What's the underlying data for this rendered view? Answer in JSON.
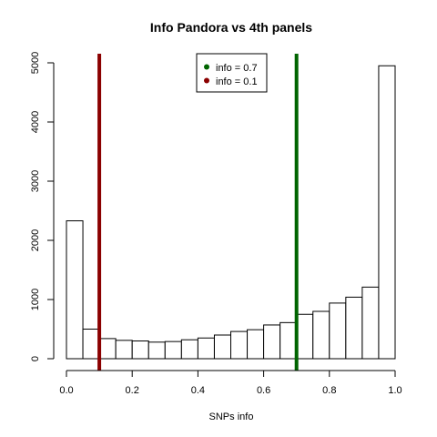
{
  "chart_data": {
    "type": "bar",
    "title": "Info Pandora vs 4th panels",
    "xlabel": "SNPs info",
    "ylabel": "",
    "xlim": [
      0.0,
      1.0
    ],
    "ylim": [
      0,
      5000
    ],
    "x_ticks": [
      "0.0",
      "0.2",
      "0.4",
      "0.6",
      "0.8",
      "1.0"
    ],
    "y_ticks": [
      "0",
      "1000",
      "2000",
      "3000",
      "4000",
      "5000"
    ],
    "bins": [
      [
        0.0,
        0.05
      ],
      [
        0.05,
        0.1
      ],
      [
        0.1,
        0.15
      ],
      [
        0.15,
        0.2
      ],
      [
        0.2,
        0.25
      ],
      [
        0.25,
        0.3
      ],
      [
        0.3,
        0.35
      ],
      [
        0.35,
        0.4
      ],
      [
        0.4,
        0.45
      ],
      [
        0.45,
        0.5
      ],
      [
        0.5,
        0.55
      ],
      [
        0.55,
        0.6
      ],
      [
        0.6,
        0.65
      ],
      [
        0.65,
        0.7
      ],
      [
        0.7,
        0.75
      ],
      [
        0.75,
        0.8
      ],
      [
        0.8,
        0.85
      ],
      [
        0.85,
        0.9
      ],
      [
        0.9,
        0.95
      ],
      [
        0.95,
        1.0
      ]
    ],
    "values": [
      2330,
      500,
      340,
      310,
      300,
      280,
      290,
      320,
      350,
      400,
      460,
      490,
      570,
      610,
      750,
      800,
      940,
      1040,
      1210,
      4950
    ],
    "vlines": [
      {
        "x": 0.1,
        "color": "#8b0000",
        "label": "info = 0.1"
      },
      {
        "x": 0.7,
        "color": "#006400",
        "label": "info = 0.7"
      }
    ],
    "legend": {
      "placement": "top-center",
      "entries": [
        {
          "label": "info = 0.7",
          "color": "#006400"
        },
        {
          "label": "info = 0.1",
          "color": "#8b0000"
        }
      ]
    },
    "grid": false
  }
}
